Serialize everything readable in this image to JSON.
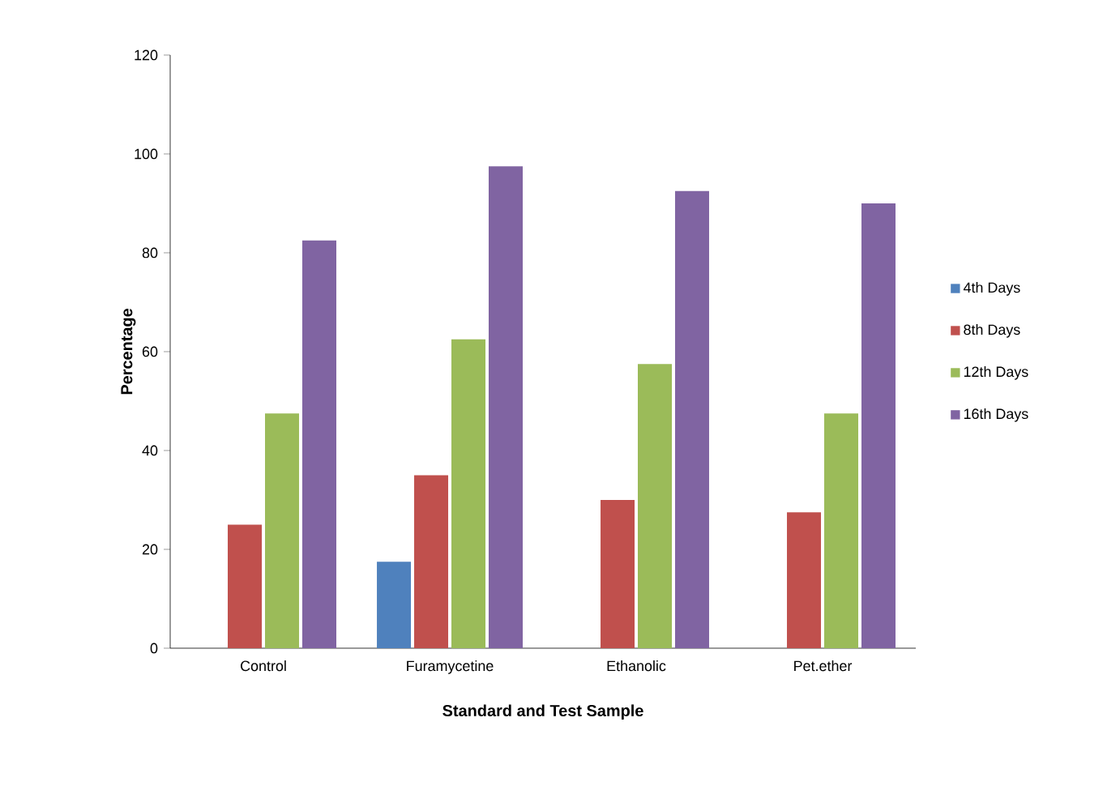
{
  "chart_data": {
    "type": "bar",
    "xlabel": "Standard and Test Sample",
    "ylabel": "Percentage",
    "categories": [
      "Control",
      "Furamycetine",
      "Ethanolic",
      "Pet.ether"
    ],
    "series": [
      {
        "name": "4th Days",
        "color": "#4f81bd",
        "values": [
          0,
          17.5,
          0,
          0
        ]
      },
      {
        "name": "8th Days",
        "color": "#c0504d",
        "values": [
          25,
          35,
          30,
          27.5
        ]
      },
      {
        "name": "12th Days",
        "color": "#9bbb59",
        "values": [
          47.5,
          62.5,
          57.5,
          47.5
        ]
      },
      {
        "name": "16th Days",
        "color": "#8064a2",
        "values": [
          82.5,
          97.5,
          92.5,
          90
        ]
      }
    ],
    "ylim": [
      0,
      120
    ],
    "yticks": [
      0,
      20,
      40,
      60,
      80,
      100,
      120
    ],
    "grid": false,
    "legend": "right"
  }
}
